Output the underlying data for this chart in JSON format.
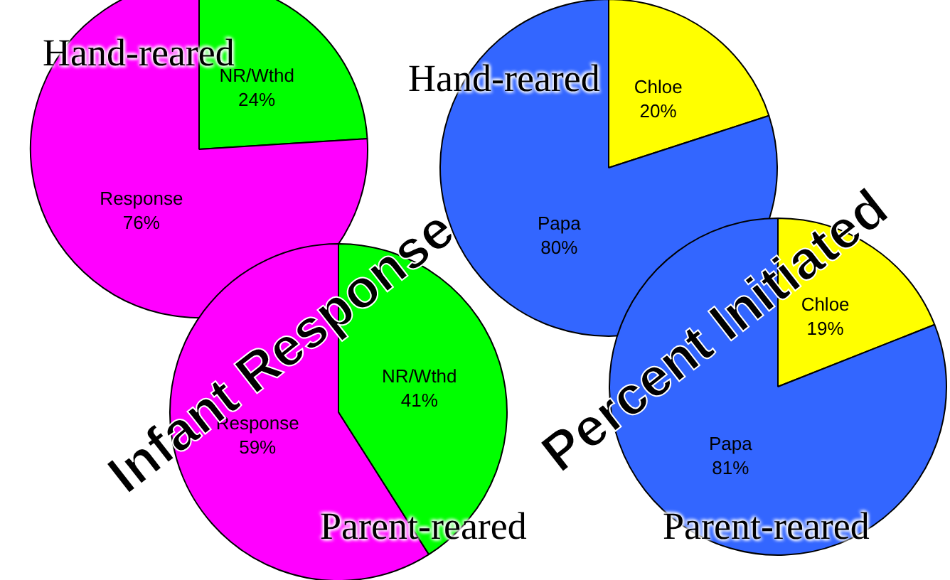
{
  "chart_data": [
    {
      "type": "pie",
      "title": "Hand-reared",
      "categories": [
        "NR/Wthd",
        "Response"
      ],
      "values": [
        24,
        76
      ],
      "value_labels": [
        "24%",
        "76%"
      ],
      "colors": [
        "#00ff00",
        "#ff00ff"
      ],
      "annotations": [
        "Infant Response"
      ]
    },
    {
      "type": "pie",
      "title": "Parent-reared",
      "categories": [
        "NR/Wthd",
        "Response"
      ],
      "values": [
        41,
        59
      ],
      "value_labels": [
        "41%",
        "59%"
      ],
      "colors": [
        "#00ff00",
        "#ff00ff"
      ]
    },
    {
      "type": "pie",
      "title": "Hand-reared",
      "categories": [
        "Chloe",
        "Papa"
      ],
      "values": [
        20,
        80
      ],
      "value_labels": [
        "20%",
        "80%"
      ],
      "colors": [
        "#ffff00",
        "#3366ff"
      ],
      "annotations": [
        "Percent Initiated"
      ]
    },
    {
      "type": "pie",
      "title": "Parent-reared",
      "categories": [
        "Chloe",
        "Papa"
      ],
      "values": [
        19,
        81
      ],
      "value_labels": [
        "19%",
        "81%"
      ],
      "colors": [
        "#ffff00",
        "#3366ff"
      ]
    }
  ]
}
